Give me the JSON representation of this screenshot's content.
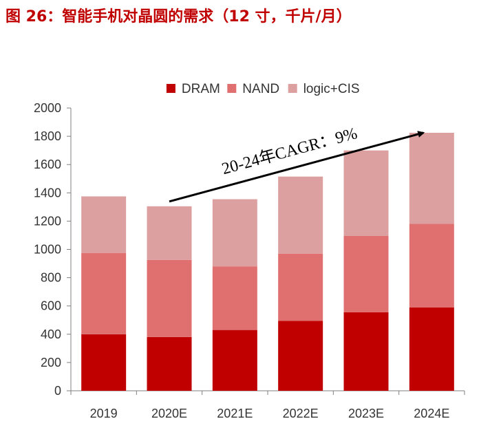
{
  "title": "图 26：智能手机对晶圆的需求（12 寸，千片/月）",
  "chart_data": {
    "type": "bar",
    "stacked": true,
    "categories": [
      "2019",
      "2020E",
      "2021E",
      "2022E",
      "2023E",
      "2024E"
    ],
    "series": [
      {
        "name": "DRAM",
        "color": "#c00000",
        "values": [
          400,
          380,
          430,
          495,
          555,
          590
        ]
      },
      {
        "name": "NAND",
        "color": "#e07070",
        "values": [
          575,
          545,
          450,
          475,
          540,
          590
        ]
      },
      {
        "name": "logic+CIS",
        "color": "#dda0a0",
        "values": [
          400,
          380,
          475,
          545,
          605,
          645
        ]
      }
    ],
    "ylim": [
      0,
      2000
    ],
    "yticks": [
      0,
      200,
      400,
      600,
      800,
      1000,
      1200,
      1400,
      1600,
      1800,
      2000
    ],
    "grid": false,
    "legend_position": "top",
    "annotation": {
      "text": "20-24年CAGR：9%",
      "arrow_from_category": "2020E",
      "arrow_to_category": "2024E"
    }
  }
}
